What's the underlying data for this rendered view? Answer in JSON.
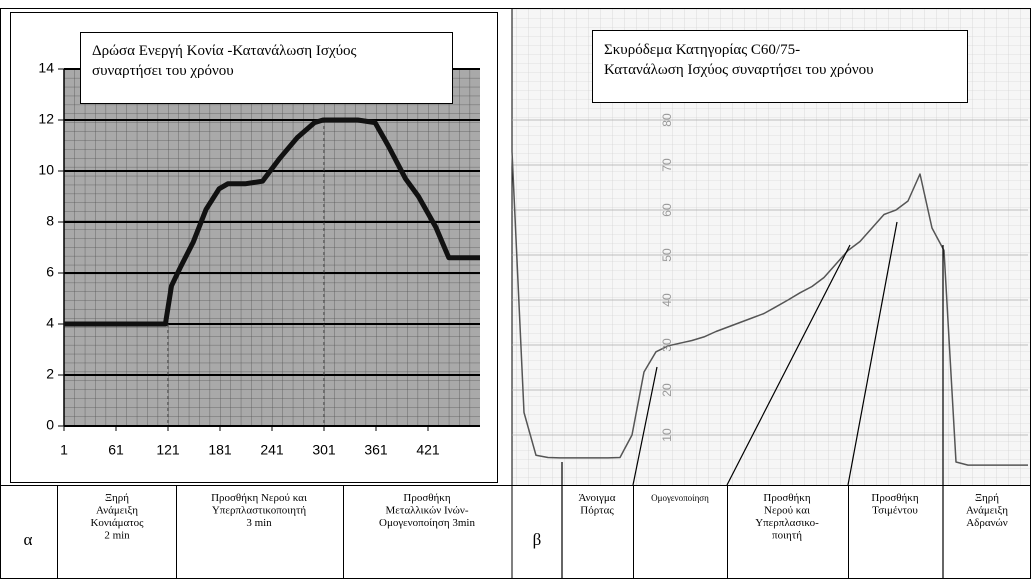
{
  "chart_data": [
    {
      "type": "line",
      "title": [
        "Δρώσα Ενεργή Κονία -Κατανάλωση Ισχύος",
        "συναρτήσει του χρόνου"
      ],
      "x": [
        1,
        30,
        60,
        90,
        118,
        125,
        135,
        150,
        165,
        180,
        190,
        210,
        230,
        250,
        270,
        290,
        300,
        320,
        340,
        360,
        375,
        395,
        410,
        430,
        445,
        460,
        481
      ],
      "values": [
        4,
        4,
        4,
        4,
        4,
        5.5,
        6.2,
        7.2,
        8.5,
        9.3,
        9.5,
        9.5,
        9.6,
        10.5,
        11.3,
        11.9,
        12,
        12,
        12,
        11.9,
        11,
        9.7,
        9,
        7.8,
        6.6,
        6.6,
        6.6
      ],
      "color": "#111111",
      "xlim": [
        1,
        481
      ],
      "xticks": [
        1,
        61,
        121,
        181,
        241,
        301,
        361,
        421
      ],
      "ylim": [
        0,
        14
      ],
      "yticks": [
        0,
        2,
        4,
        6,
        8,
        10,
        12,
        14
      ],
      "grid": true
    },
    {
      "type": "line",
      "title": [
        "Σκυρόδεμα Κατηγορίας C60/75-",
        "Κατανάλωση Ισχύος συναρτήσει του χρόνου"
      ],
      "categories": [
        null,
        null,
        null,
        null,
        null,
        null,
        null,
        null,
        null,
        null,
        null,
        null,
        null,
        null,
        null,
        null,
        null,
        null,
        null,
        null,
        null,
        null,
        null,
        null,
        null,
        null,
        null,
        null,
        null,
        null,
        null,
        null,
        null,
        null,
        null,
        null,
        null,
        null,
        null,
        null,
        null,
        null,
        null,
        null
      ],
      "values": [
        73,
        15,
        5.5,
        5,
        4.9,
        4.9,
        4.9,
        4.9,
        4.9,
        5,
        10,
        24,
        28.5,
        29.8,
        30.4,
        31,
        31.8,
        33,
        34,
        35,
        36,
        37,
        38.5,
        40,
        41.6,
        43,
        45,
        48,
        51,
        53,
        56,
        59,
        60,
        62,
        68,
        56,
        51,
        4,
        3.3,
        3.3,
        3.3,
        3.3,
        3.3,
        3.3
      ],
      "color": "#555555",
      "ylim": [
        0,
        100
      ],
      "yticks": [
        10,
        20,
        30,
        40,
        50,
        60,
        70,
        80
      ],
      "grid": true
    }
  ],
  "table": {
    "left": {
      "label": "α",
      "cells": [
        [
          "Ξηρή",
          "Ανάμειξη",
          "Κονιάματος",
          "2 min"
        ],
        [
          "Προσθήκη Νερού και",
          "Υπερπλαστικοποιητή",
          "3 min"
        ],
        [
          "Προσθήκη",
          "Μεταλλικών Ινών-",
          "Ομογενοποίηση 3min"
        ]
      ]
    },
    "right": {
      "label": "β",
      "cells": [
        [
          "Άνοιγμα",
          "Πόρτας"
        ],
        [
          "Ομογενοποίηση"
        ],
        [
          "Προσθήκη",
          "Νερού και",
          "Υπερπλασικο-",
          "ποιητή"
        ],
        [
          "Προσθήκη",
          "Τσιμέντου"
        ],
        [
          "Ξηρή",
          "Ανάμειξη",
          "Αδρανών"
        ]
      ]
    }
  }
}
